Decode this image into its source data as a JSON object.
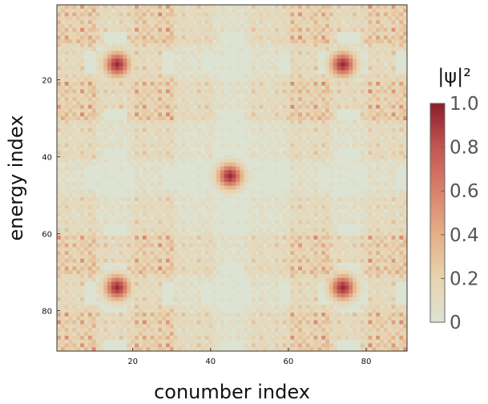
{
  "chart_data": {
    "type": "heatmap",
    "title": "",
    "xlabel": "conumber index",
    "ylabel": "energy index",
    "xlim": [
      0.5,
      90.5
    ],
    "ylim": [
      0.5,
      90.5
    ],
    "y_inverted": true,
    "grid": "none",
    "x_ticks": [
      20,
      40,
      60,
      80
    ],
    "y_ticks": [
      20,
      40,
      60,
      80
    ],
    "rows": 90,
    "cols": 90,
    "block_pattern": "fractal tiling: four clusters (corners) around a central cluster, repeated at smaller scales; bright peaks at (16,16), (16,74), (74,16), (74,74), (45,45)",
    "peak_cells": [
      [
        16,
        16
      ],
      [
        16,
        74
      ],
      [
        74,
        16
      ],
      [
        74,
        74
      ],
      [
        45,
        45
      ]
    ],
    "colorbar": {
      "title": "|ψ|²",
      "range": [
        0,
        1.0
      ],
      "tick_values": [
        0,
        0.2,
        0.4,
        0.6,
        0.8,
        1.0
      ],
      "tick_labels": [
        "0",
        "0.2",
        "0.4",
        "0.6",
        "0.8",
        "1.0"
      ],
      "colors": [
        "#dde3d3",
        "#e8d3b0",
        "#e4b088",
        "#d8826b",
        "#c45652",
        "#8c1c2a"
      ]
    },
    "colors": {
      "background": "#dde3d3",
      "frame": "#333333"
    }
  }
}
